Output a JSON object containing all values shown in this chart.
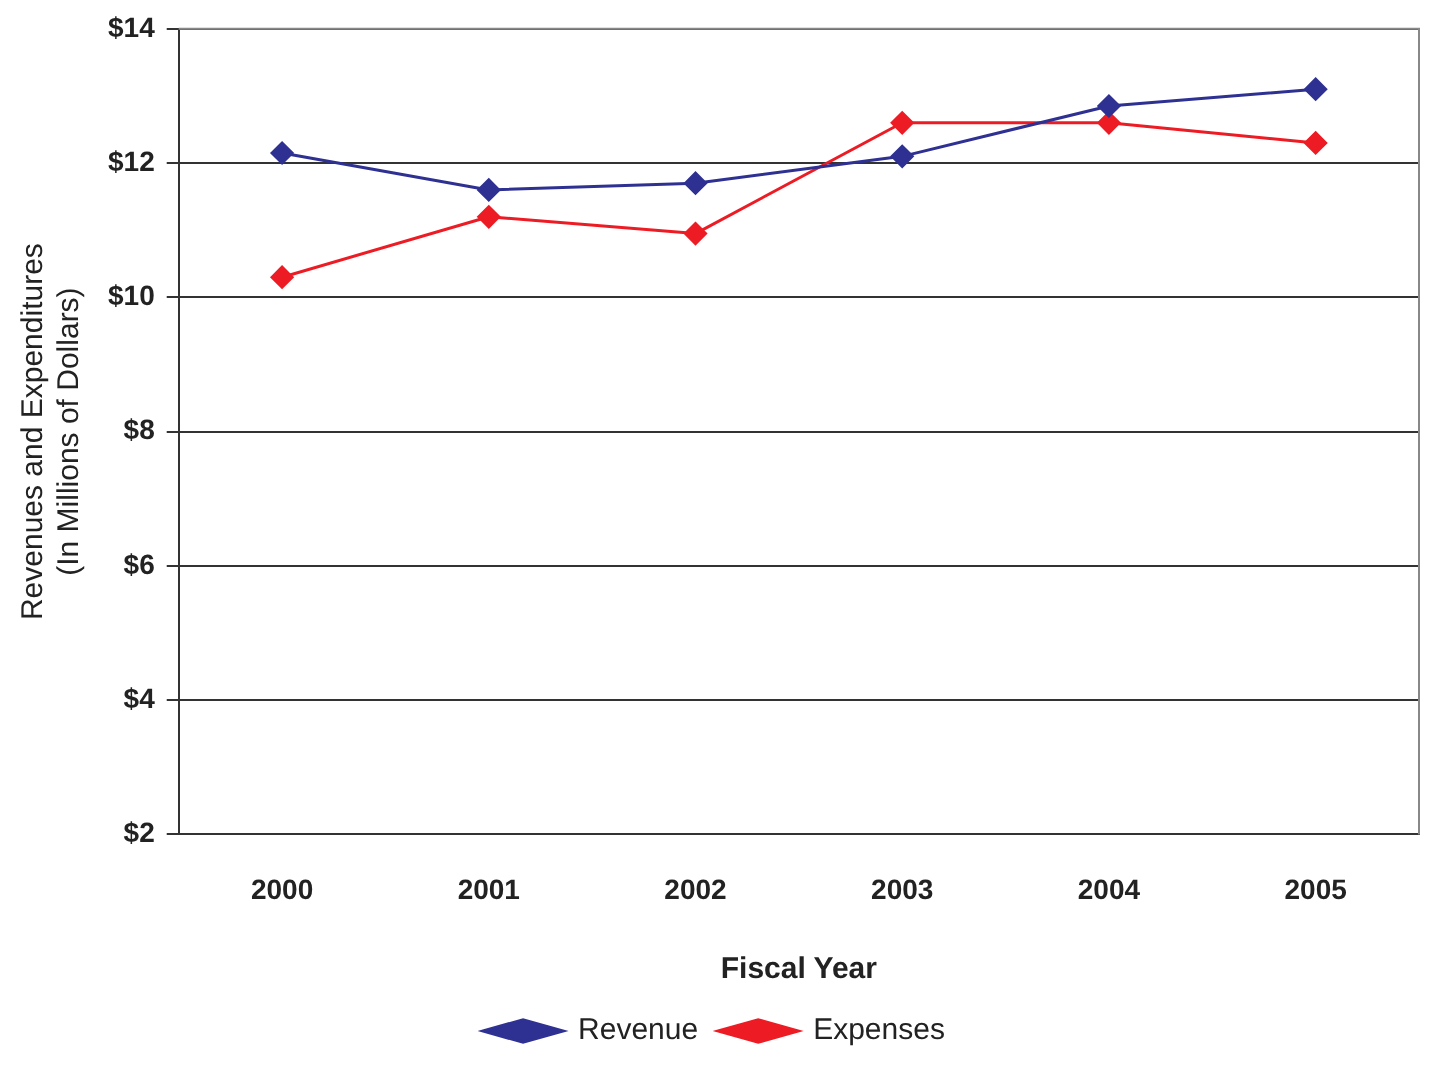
{
  "chart_data": {
    "type": "line",
    "xlabel": "Fiscal Year",
    "ylabel": "Revenues and Expenditures\n(In Millions of Dollars)",
    "categories": [
      "2000",
      "2001",
      "2002",
      "2003",
      "2004",
      "2005"
    ],
    "series": [
      {
        "name": "Revenue",
        "color": "#2e3192",
        "values": [
          12.15,
          11.6,
          11.7,
          12.1,
          12.85,
          13.1
        ]
      },
      {
        "name": "Expenses",
        "color": "#ed1c24",
        "values": [
          10.3,
          11.2,
          10.95,
          12.6,
          12.6,
          12.3
        ]
      }
    ],
    "ylim": [
      2,
      14
    ],
    "yticks": [
      {
        "value": 2,
        "label": "$2"
      },
      {
        "value": 4,
        "label": "$4"
      },
      {
        "value": 6,
        "label": "$6"
      },
      {
        "value": 8,
        "label": "$8"
      },
      {
        "value": 10,
        "label": "$10"
      },
      {
        "value": 12,
        "label": "$12"
      },
      {
        "value": 14,
        "label": "$14"
      }
    ],
    "grid": "y",
    "legend": "bottom",
    "marker": "diamond",
    "line_style": "solid"
  }
}
